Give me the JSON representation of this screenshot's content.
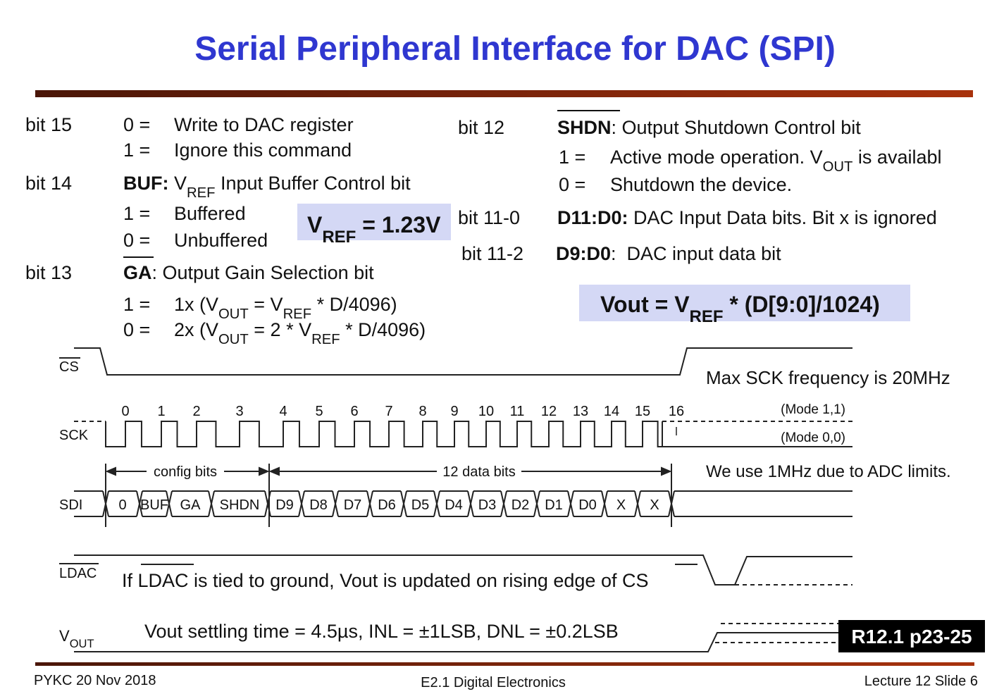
{
  "title": "Serial Peripheral Interface for DAC (SPI)",
  "left": {
    "bit15": {
      "label": "bit 15",
      "opt0": [
        "0 =",
        "Write to DAC register"
      ],
      "opt1": [
        "1 =",
        "Ignore this command"
      ]
    },
    "bit14": {
      "label": "bit 14",
      "heading": [
        "BUF:",
        " V",
        "REF",
        " Input Buffer Control bit"
      ],
      "opt1": [
        "1 =",
        "Buffered"
      ],
      "opt0": [
        "0 =",
        "Unbuffered"
      ]
    },
    "vref_box": [
      "V",
      "REF",
      " = 1.23V"
    ],
    "bit13": {
      "label": "bit 13",
      "heading": [
        "GA",
        ": Output Gain Selection bit"
      ],
      "opt1": [
        "1 =",
        "1x (V",
        "OUT",
        " = V",
        "REF",
        " * D/4096)"
      ],
      "opt0": [
        "0 =",
        "2x (V",
        "OUT",
        " = 2 * V",
        "REF",
        " * D/4096)"
      ]
    }
  },
  "right": {
    "bit12": {
      "label": "bit 12",
      "heading": [
        "SHDN",
        ": Output Shutdown Control bit"
      ],
      "opt1": [
        "1 =",
        "Active mode operation. V",
        "OUT",
        " is availabl"
      ],
      "opt0": [
        "0 =",
        "Shutdown the device."
      ]
    },
    "bit11_0": {
      "label": "bit 11-0",
      "text": [
        "D11:D0:",
        " DAC Input Data bits. Bit x is ignored"
      ]
    },
    "bit11_2": {
      "label": "bit 11-2",
      "text": [
        "D9:D0",
        ":  DAC input data bit"
      ]
    },
    "vout_box": [
      "Vout = V",
      "REF",
      " * (D[9:0]/1024)"
    ]
  },
  "timing": {
    "cs": {
      "label": "CS",
      "note": "Max SCK frequency is 20MHz"
    },
    "sck": {
      "label": "SCK",
      "clocks": [
        0,
        1,
        2,
        3,
        4,
        5,
        6,
        7,
        8,
        9,
        10,
        11,
        12,
        13,
        14,
        15,
        16
      ],
      "mode11": "(Mode 1,1)",
      "mode00": "(Mode 0,0)"
    },
    "groups": {
      "config": "config bits",
      "data": "12 data bits",
      "note": "We use 1MHz due to ADC limits."
    },
    "sdi": {
      "label": "SDI",
      "cells": [
        "0",
        "BUF",
        "GA",
        "SHDN",
        "D9",
        "D8",
        "D7",
        "D6",
        "D5",
        "D4",
        "D3",
        "D2",
        "D1",
        "D0",
        "X",
        "X"
      ]
    },
    "ldac": {
      "label": "LDAC",
      "note": [
        "If ",
        "LDAC",
        " is tied to ground, Vout is updated on rising edge of ",
        "CS"
      ]
    },
    "vout": {
      "label": [
        "V",
        "OUT"
      ],
      "note": "Vout settling time = 4.5µs, INL = ±1LSB, DNL = ±0.2LSB",
      "ref": "R12.1 p23-25"
    }
  },
  "footer": {
    "left": "PYKC 20 Nov 2018",
    "center": "E2.1 Digital Electronics",
    "right": "Lecture 12 Slide 6"
  }
}
